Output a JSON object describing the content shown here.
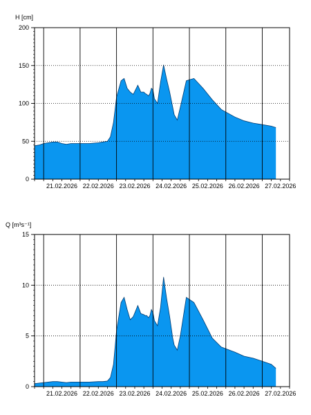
{
  "chart_data": [
    {
      "type": "area",
      "ylabel": "H [cm]",
      "ylim": [
        0,
        200
      ],
      "yticks": [
        0,
        50,
        100,
        150,
        200
      ],
      "xlim": [
        "20.02.2026 18:00",
        "27.02.2026 18:00"
      ],
      "x_tick_labels": [
        "21.02.2026",
        "22.02.2026",
        "23.02.2026",
        "24.02.2026",
        "25.02.2026",
        "26.02.2026",
        "27.02.2026"
      ],
      "grid": "vertical solid at 00:00 of each day, horizontal dotted at 50/100/150",
      "fill_color": "#0a96f0",
      "series": [
        {
          "x": [
            "20.02.2026 18:00",
            "20.02.2026 21:00",
            "21.02.2026 00:00",
            "21.02.2026 06:00",
            "21.02.2026 09:00",
            "21.02.2026 12:00",
            "21.02.2026 15:00",
            "21.02.2026 18:00",
            "22.02.2026 00:00",
            "22.02.2026 06:00",
            "22.02.2026 12:00",
            "22.02.2026 15:00",
            "22.02.2026 18:00",
            "22.02.2026 20:00",
            "22.02.2026 22:00",
            "23.02.2026 00:00",
            "23.02.2026 03:00",
            "23.02.2026 05:00",
            "23.02.2026 07:00",
            "23.02.2026 09:00",
            "23.02.2026 11:00",
            "23.02.2026 14:00",
            "23.02.2026 16:00",
            "23.02.2026 18:00",
            "23.02.2026 19:00",
            "23.02.2026 20:00",
            "23.02.2026 21:00",
            "23.02.2026 22:00",
            "23.02.2026 23:00",
            "24.02.2026 00:00",
            "24.02.2026 01:00",
            "24.02.2026 03:00",
            "24.02.2026 05:00",
            "24.02.2026 07:00",
            "24.02.2026 09:00",
            "24.02.2026 11:00",
            "24.02.2026 13:00",
            "24.02.2026 14:00",
            "24.02.2026 16:00",
            "24.02.2026 18:00",
            "24.02.2026 22:00",
            "25.02.2026 03:00",
            "25.02.2026 09:00",
            "25.02.2026 15:00",
            "25.02.2026 21:00",
            "26.02.2026 06:00",
            "26.02.2026 12:00",
            "26.02.2026 18:00",
            "27.02.2026 00:00",
            "27.02.2026 06:00",
            "27.02.2026 09:00"
          ],
          "values": [
            44,
            45,
            47,
            49,
            49,
            47,
            46,
            47,
            47,
            47,
            48,
            49,
            50,
            56,
            75,
            108,
            130,
            133,
            120,
            115,
            112,
            124,
            115,
            115,
            113,
            112,
            110,
            113,
            120,
            118,
            106,
            100,
            128,
            151,
            132,
            115,
            95,
            85,
            78,
            95,
            130,
            133,
            120,
            105,
            92,
            82,
            77,
            74,
            72,
            70,
            68
          ]
        }
      ]
    },
    {
      "type": "area",
      "ylabel": "Q [m³s⁻¹]",
      "ylim": [
        0,
        15
      ],
      "yticks": [
        0,
        5,
        10,
        15
      ],
      "xlim": [
        "20.02.2026 18:00",
        "27.02.2026 18:00"
      ],
      "x_tick_labels": [
        "21.02.2026",
        "22.02.2026",
        "23.02.2026",
        "24.02.2026",
        "25.02.2026",
        "26.02.2026",
        "27.02.2026"
      ],
      "grid": "vertical solid at 00:00 of each day, horizontal dotted at 5/10",
      "fill_color": "#0a96f0",
      "series": [
        {
          "x": [
            "20.02.2026 18:00",
            "20.02.2026 21:00",
            "21.02.2026 00:00",
            "21.02.2026 06:00",
            "21.02.2026 09:00",
            "21.02.2026 12:00",
            "21.02.2026 15:00",
            "21.02.2026 18:00",
            "22.02.2026 00:00",
            "22.02.2026 06:00",
            "22.02.2026 12:00",
            "22.02.2026 15:00",
            "22.02.2026 18:00",
            "22.02.2026 20:00",
            "22.02.2026 22:00",
            "23.02.2026 00:00",
            "23.02.2026 03:00",
            "23.02.2026 05:00",
            "23.02.2026 07:00",
            "23.02.2026 09:00",
            "23.02.2026 11:00",
            "23.02.2026 14:00",
            "23.02.2026 16:00",
            "23.02.2026 18:00",
            "23.02.2026 19:00",
            "23.02.2026 20:00",
            "23.02.2026 21:00",
            "23.02.2026 22:00",
            "23.02.2026 23:00",
            "24.02.2026 00:00",
            "24.02.2026 01:00",
            "24.02.2026 03:00",
            "24.02.2026 05:00",
            "24.02.2026 07:00",
            "24.02.2026 09:00",
            "24.02.2026 11:00",
            "24.02.2026 13:00",
            "24.02.2026 14:00",
            "24.02.2026 16:00",
            "24.02.2026 18:00",
            "24.02.2026 22:00",
            "25.02.2026 03:00",
            "25.02.2026 09:00",
            "25.02.2026 15:00",
            "25.02.2026 21:00",
            "26.02.2026 06:00",
            "26.02.2026 12:00",
            "26.02.2026 18:00",
            "27.02.2026 00:00",
            "27.02.2026 06:00",
            "27.02.2026 09:00"
          ],
          "values": [
            0.3,
            0.35,
            0.4,
            0.5,
            0.5,
            0.45,
            0.4,
            0.45,
            0.45,
            0.45,
            0.5,
            0.5,
            0.55,
            0.9,
            2.2,
            5.5,
            8.3,
            8.8,
            7.6,
            6.6,
            6.9,
            8.0,
            7.2,
            7.1,
            7.0,
            7.0,
            6.8,
            7.0,
            7.6,
            7.3,
            6.5,
            6.0,
            7.8,
            10.8,
            8.7,
            6.9,
            4.8,
            4.1,
            3.6,
            5.0,
            8.8,
            8.3,
            6.6,
            4.8,
            3.9,
            3.4,
            3.0,
            2.8,
            2.5,
            2.2,
            1.8
          ]
        }
      ]
    }
  ]
}
